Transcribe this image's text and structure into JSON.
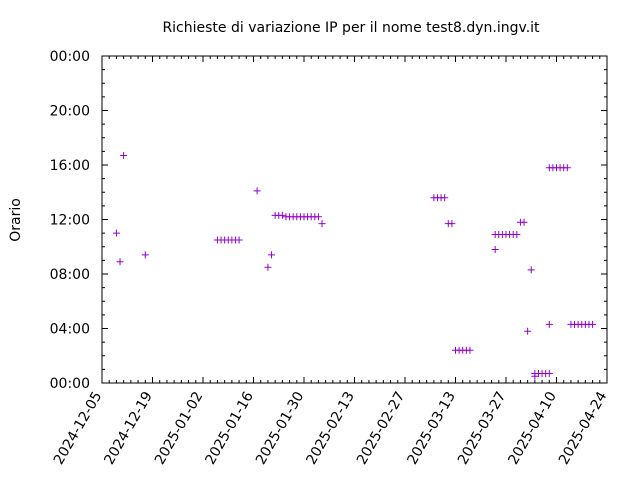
{
  "chart_data": {
    "type": "scatter",
    "title": "Richieste di variazione IP per il nome test8.dyn.ingv.it",
    "xlabel": "",
    "ylabel": "Orario",
    "x_type": "date",
    "xlim": [
      "2024-12-05",
      "2025-04-24"
    ],
    "ylim": [
      0,
      24
    ],
    "x_tick_labels": [
      "2024-12-05",
      "2024-12-19",
      "2025-01-02",
      "2025-01-16",
      "2025-01-30",
      "2025-02-13",
      "2025-02-27",
      "2025-03-13",
      "2025-03-27",
      "2025-04-10",
      "2025-04-24"
    ],
    "y_tick_values": [
      0,
      4,
      8,
      12,
      16,
      20,
      24
    ],
    "y_tick_labels": [
      "00:00",
      "04:00",
      "08:00",
      "12:00",
      "16:00",
      "20:00",
      "00:00"
    ],
    "grid": false,
    "marker": "+",
    "marker_color": "#9400d3",
    "points": [
      {
        "x": "2024-12-09",
        "y": 11.0
      },
      {
        "x": "2024-12-10",
        "y": 8.9
      },
      {
        "x": "2024-12-11",
        "y": 16.7
      },
      {
        "x": "2024-12-17",
        "y": 9.4
      },
      {
        "x": "2025-01-06",
        "y": 10.5
      },
      {
        "x": "2025-01-07",
        "y": 10.5
      },
      {
        "x": "2025-01-08",
        "y": 10.5
      },
      {
        "x": "2025-01-09",
        "y": 10.5
      },
      {
        "x": "2025-01-10",
        "y": 10.5
      },
      {
        "x": "2025-01-11",
        "y": 10.5
      },
      {
        "x": "2025-01-12",
        "y": 10.5
      },
      {
        "x": "2025-01-17",
        "y": 14.1
      },
      {
        "x": "2025-01-20",
        "y": 8.5
      },
      {
        "x": "2025-01-21",
        "y": 9.4
      },
      {
        "x": "2025-01-22",
        "y": 12.3
      },
      {
        "x": "2025-01-23",
        "y": 12.3
      },
      {
        "x": "2025-01-24",
        "y": 12.3
      },
      {
        "x": "2025-01-25",
        "y": 12.2
      },
      {
        "x": "2025-01-26",
        "y": 12.2
      },
      {
        "x": "2025-01-27",
        "y": 12.2
      },
      {
        "x": "2025-01-28",
        "y": 12.2
      },
      {
        "x": "2025-01-29",
        "y": 12.2
      },
      {
        "x": "2025-01-30",
        "y": 12.2
      },
      {
        "x": "2025-01-31",
        "y": 12.2
      },
      {
        "x": "2025-02-01",
        "y": 12.2
      },
      {
        "x": "2025-02-02",
        "y": 12.2
      },
      {
        "x": "2025-02-03",
        "y": 12.2
      },
      {
        "x": "2025-02-04",
        "y": 11.7
      },
      {
        "x": "2025-03-07",
        "y": 13.6
      },
      {
        "x": "2025-03-08",
        "y": 13.6
      },
      {
        "x": "2025-03-09",
        "y": 13.6
      },
      {
        "x": "2025-03-10",
        "y": 13.6
      },
      {
        "x": "2025-03-11",
        "y": 11.7
      },
      {
        "x": "2025-03-12",
        "y": 11.7
      },
      {
        "x": "2025-03-13",
        "y": 2.4
      },
      {
        "x": "2025-03-14",
        "y": 2.4
      },
      {
        "x": "2025-03-15",
        "y": 2.4
      },
      {
        "x": "2025-03-16",
        "y": 2.4
      },
      {
        "x": "2025-03-17",
        "y": 2.4
      },
      {
        "x": "2025-03-24",
        "y": 9.8
      },
      {
        "x": "2025-03-24",
        "y": 10.9
      },
      {
        "x": "2025-03-25",
        "y": 10.9
      },
      {
        "x": "2025-03-26",
        "y": 10.9
      },
      {
        "x": "2025-03-27",
        "y": 10.9
      },
      {
        "x": "2025-03-28",
        "y": 10.9
      },
      {
        "x": "2025-03-29",
        "y": 10.9
      },
      {
        "x": "2025-03-30",
        "y": 10.9
      },
      {
        "x": "2025-03-31",
        "y": 11.8
      },
      {
        "x": "2025-04-01",
        "y": 11.8
      },
      {
        "x": "2025-04-02",
        "y": 3.8
      },
      {
        "x": "2025-04-03",
        "y": 8.3
      },
      {
        "x": "2025-04-04",
        "y": 0.5
      },
      {
        "x": "2025-04-04",
        "y": 0.7
      },
      {
        "x": "2025-04-05",
        "y": 0.7
      },
      {
        "x": "2025-04-06",
        "y": 0.7
      },
      {
        "x": "2025-04-07",
        "y": 0.7
      },
      {
        "x": "2025-04-08",
        "y": 0.7
      },
      {
        "x": "2025-04-08",
        "y": 4.3
      },
      {
        "x": "2025-04-08",
        "y": 15.8
      },
      {
        "x": "2025-04-09",
        "y": 15.8
      },
      {
        "x": "2025-04-10",
        "y": 15.8
      },
      {
        "x": "2025-04-11",
        "y": 15.8
      },
      {
        "x": "2025-04-12",
        "y": 15.8
      },
      {
        "x": "2025-04-13",
        "y": 15.8
      },
      {
        "x": "2025-04-14",
        "y": 4.3
      },
      {
        "x": "2025-04-15",
        "y": 4.3
      },
      {
        "x": "2025-04-16",
        "y": 4.3
      },
      {
        "x": "2025-04-17",
        "y": 4.3
      },
      {
        "x": "2025-04-18",
        "y": 4.3
      },
      {
        "x": "2025-04-19",
        "y": 4.3
      },
      {
        "x": "2025-04-20",
        "y": 4.3
      }
    ]
  }
}
